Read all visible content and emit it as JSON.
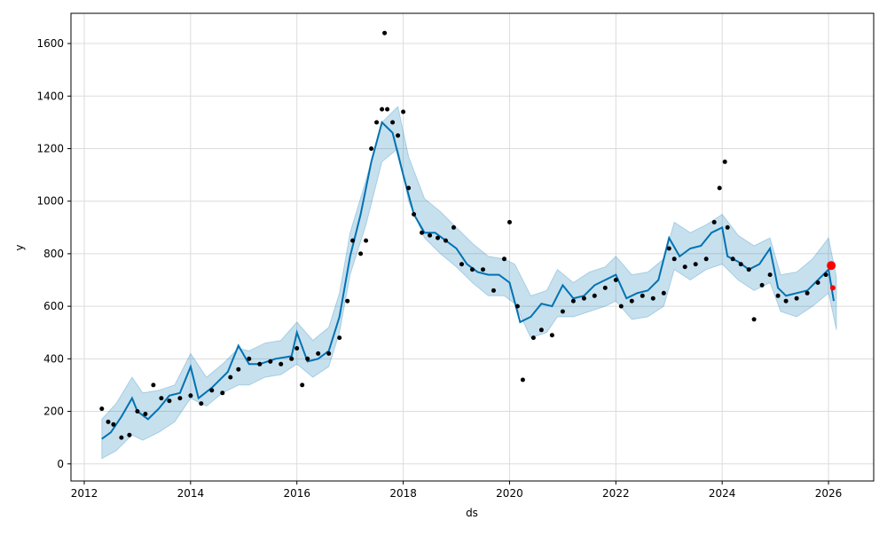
{
  "chart_data": {
    "type": "line",
    "title": "",
    "xlabel": "ds",
    "ylabel": "y",
    "xlim": [
      2011.75,
      2026.85
    ],
    "ylim": [
      -65,
      1715
    ],
    "x_ticks": [
      2012,
      2014,
      2016,
      2018,
      2020,
      2022,
      2024,
      2026
    ],
    "x_tick_labels": [
      "2012",
      "2014",
      "2016",
      "2018",
      "2020",
      "2022",
      "2024",
      "2026"
    ],
    "y_ticks": [
      0,
      200,
      400,
      600,
      800,
      1000,
      1200,
      1400,
      1600
    ],
    "y_tick_labels": [
      "0",
      "200",
      "400",
      "600",
      "800",
      "1000",
      "1200",
      "1400",
      "1600"
    ],
    "grid": true,
    "colors": {
      "forecast": "#0072B2",
      "interval": "#0072B2",
      "observed": "#000000",
      "highlight": "#ff0000"
    },
    "series": [
      {
        "kind": "interval",
        "x": [
          2012.33,
          2012.6,
          2012.9,
          2013.1,
          2013.4,
          2013.7,
          2014.0,
          2014.3,
          2014.6,
          2014.9,
          2015.1,
          2015.4,
          2015.7,
          2016.0,
          2016.3,
          2016.6,
          2016.8,
          2017.0,
          2017.3,
          2017.6,
          2017.9,
          2018.1,
          2018.4,
          2018.7,
          2019.0,
          2019.3,
          2019.6,
          2019.9,
          2020.1,
          2020.4,
          2020.7,
          2020.9,
          2021.2,
          2021.5,
          2021.8,
          2022.0,
          2022.3,
          2022.6,
          2022.9,
          2023.1,
          2023.4,
          2023.7,
          2024.0,
          2024.3,
          2024.6,
          2024.9,
          2025.1,
          2025.4,
          2025.7,
          2026.0,
          2026.15
        ],
        "upper": [
          170,
          230,
          330,
          270,
          280,
          300,
          420,
          330,
          380,
          440,
          430,
          460,
          470,
          540,
          470,
          520,
          650,
          880,
          1080,
          1300,
          1360,
          1170,
          1010,
          960,
          900,
          840,
          790,
          780,
          760,
          640,
          660,
          740,
          690,
          730,
          750,
          790,
          720,
          730,
          780,
          920,
          880,
          910,
          950,
          870,
          830,
          860,
          720,
          730,
          780,
          860,
          710
        ],
        "lower": [
          20,
          50,
          110,
          90,
          120,
          160,
          250,
          220,
          270,
          300,
          300,
          330,
          340,
          380,
          330,
          370,
          500,
          720,
          910,
          1150,
          1200,
          1000,
          860,
          800,
          750,
          690,
          640,
          640,
          610,
          480,
          500,
          560,
          560,
          580,
          600,
          620,
          550,
          560,
          600,
          740,
          700,
          740,
          760,
          700,
          660,
          690,
          580,
          560,
          600,
          650,
          510
        ]
      },
      {
        "kind": "forecast",
        "x": [
          2012.33,
          2012.5,
          2012.7,
          2012.9,
          2013.0,
          2013.2,
          2013.4,
          2013.6,
          2013.8,
          2014.0,
          2014.15,
          2014.4,
          2014.7,
          2014.9,
          2015.1,
          2015.3,
          2015.6,
          2015.9,
          2016.0,
          2016.2,
          2016.4,
          2016.6,
          2016.8,
          2017.0,
          2017.2,
          2017.4,
          2017.6,
          2017.8,
          2018.0,
          2018.2,
          2018.4,
          2018.6,
          2018.8,
          2019.0,
          2019.2,
          2019.4,
          2019.6,
          2019.8,
          2020.0,
          2020.2,
          2020.4,
          2020.6,
          2020.8,
          2021.0,
          2021.2,
          2021.4,
          2021.6,
          2021.8,
          2022.0,
          2022.2,
          2022.4,
          2022.6,
          2022.8,
          2023.0,
          2023.2,
          2023.4,
          2023.6,
          2023.8,
          2024.0,
          2024.1,
          2024.3,
          2024.5,
          2024.7,
          2024.9,
          2025.05,
          2025.2,
          2025.4,
          2025.6,
          2025.8,
          2026.0,
          2026.1
        ],
        "y": [
          95,
          120,
          180,
          250,
          200,
          170,
          210,
          260,
          270,
          370,
          250,
          290,
          350,
          450,
          380,
          380,
          400,
          410,
          500,
          390,
          400,
          430,
          560,
          790,
          950,
          1150,
          1300,
          1260,
          1100,
          950,
          880,
          880,
          850,
          820,
          760,
          730,
          720,
          720,
          690,
          540,
          560,
          610,
          600,
          680,
          630,
          640,
          680,
          700,
          720,
          630,
          650,
          660,
          700,
          860,
          790,
          820,
          830,
          880,
          900,
          790,
          770,
          740,
          760,
          820,
          670,
          640,
          650,
          660,
          700,
          740,
          620
        ]
      },
      {
        "kind": "observed",
        "x": [
          2012.33,
          2012.45,
          2012.55,
          2012.7,
          2012.85,
          2013.0,
          2013.15,
          2013.3,
          2013.45,
          2013.6,
          2013.8,
          2014.0,
          2014.2,
          2014.4,
          2014.6,
          2014.75,
          2014.9,
          2015.1,
          2015.3,
          2015.5,
          2015.7,
          2015.9,
          2016.0,
          2016.1,
          2016.2,
          2016.4,
          2016.6,
          2016.8,
          2016.95,
          2017.05,
          2017.2,
          2017.3,
          2017.4,
          2017.5,
          2017.6,
          2017.65,
          2017.7,
          2017.8,
          2017.9,
          2018.0,
          2018.1,
          2018.2,
          2018.35,
          2018.5,
          2018.65,
          2018.8,
          2018.95,
          2019.1,
          2019.3,
          2019.5,
          2019.7,
          2019.9,
          2020.0,
          2020.15,
          2020.25,
          2020.45,
          2020.6,
          2020.8,
          2021.0,
          2021.2,
          2021.4,
          2021.6,
          2021.8,
          2022.0,
          2022.1,
          2022.3,
          2022.5,
          2022.7,
          2022.9,
          2023.0,
          2023.1,
          2023.3,
          2023.5,
          2023.7,
          2023.85,
          2023.95,
          2024.05,
          2024.1,
          2024.2,
          2024.35,
          2024.5,
          2024.6,
          2024.75,
          2024.9,
          2025.05,
          2025.2,
          2025.4,
          2025.6,
          2025.8,
          2025.95
        ],
        "y": [
          210,
          160,
          150,
          100,
          110,
          200,
          190,
          300,
          250,
          240,
          250,
          260,
          230,
          280,
          270,
          330,
          360,
          400,
          380,
          390,
          380,
          400,
          440,
          300,
          400,
          420,
          420,
          480,
          620,
          850,
          800,
          850,
          1200,
          1300,
          1350,
          1640,
          1350,
          1300,
          1250,
          1340,
          1050,
          950,
          880,
          870,
          860,
          850,
          900,
          760,
          740,
          740,
          660,
          780,
          920,
          600,
          320,
          480,
          510,
          490,
          580,
          620,
          630,
          640,
          670,
          700,
          600,
          620,
          640,
          630,
          650,
          820,
          780,
          750,
          760,
          780,
          920,
          1050,
          1150,
          900,
          780,
          760,
          740,
          550,
          680,
          720,
          640,
          620,
          630,
          650,
          690,
          720
        ]
      },
      {
        "kind": "highlight",
        "x": [
          2026.05,
          2026.08
        ],
        "y": [
          755,
          670
        ]
      }
    ]
  }
}
